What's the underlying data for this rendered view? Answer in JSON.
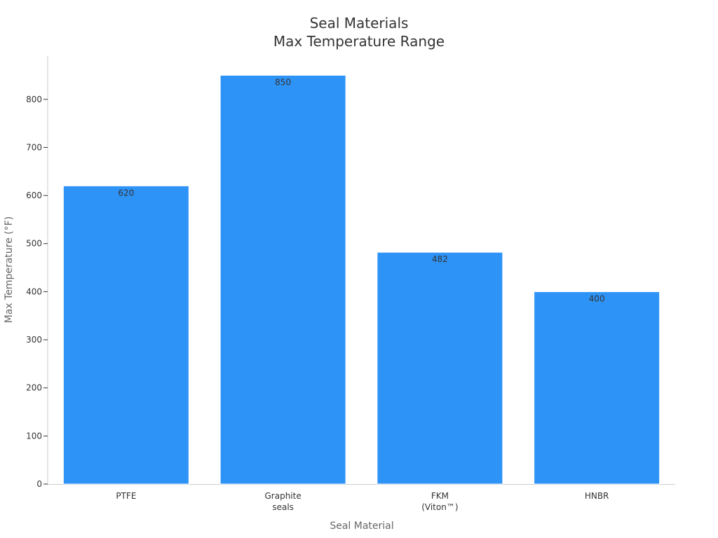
{
  "chart_data": {
    "type": "bar",
    "title": [
      "Seal Materials",
      "Max Temperature Range"
    ],
    "xlabel": "Seal Material",
    "ylabel": "Max Temperature (°F)",
    "categories": [
      [
        "PTFE"
      ],
      [
        "Graphite",
        "seals"
      ],
      [
        "FKM",
        "(Viton™)"
      ],
      [
        "HNBR"
      ]
    ],
    "values": [
      620,
      850,
      482,
      400
    ],
    "data_labels": [
      "620",
      "850",
      "482",
      "400"
    ],
    "ylim": [
      0,
      890
    ],
    "yticks": [
      0,
      100,
      200,
      300,
      400,
      500,
      600,
      700,
      800
    ],
    "grid": false,
    "legend": "none",
    "colors": {
      "bar": "#2E93F7",
      "bar_edge": "#ffffff",
      "axis": "#cccccc",
      "tick": "#333333"
    }
  }
}
